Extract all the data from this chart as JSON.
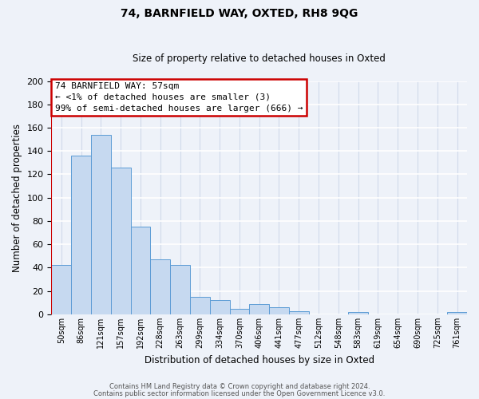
{
  "title": "74, BARNFIELD WAY, OXTED, RH8 9QG",
  "subtitle": "Size of property relative to detached houses in Oxted",
  "xlabel": "Distribution of detached houses by size in Oxted",
  "ylabel": "Number of detached properties",
  "bin_labels": [
    "50sqm",
    "86sqm",
    "121sqm",
    "157sqm",
    "192sqm",
    "228sqm",
    "263sqm",
    "299sqm",
    "334sqm",
    "370sqm",
    "406sqm",
    "441sqm",
    "477sqm",
    "512sqm",
    "548sqm",
    "583sqm",
    "619sqm",
    "654sqm",
    "690sqm",
    "725sqm",
    "761sqm"
  ],
  "bar_values": [
    42,
    136,
    154,
    126,
    75,
    47,
    42,
    15,
    12,
    5,
    9,
    6,
    3,
    0,
    0,
    2,
    0,
    0,
    0,
    0,
    2
  ],
  "bar_color": "#c6d9f0",
  "bar_edge_color": "#5b9bd5",
  "ylim": [
    0,
    200
  ],
  "yticks": [
    0,
    20,
    40,
    60,
    80,
    100,
    120,
    140,
    160,
    180,
    200
  ],
  "property_line_color": "#cc0000",
  "annotation_title": "74 BARNFIELD WAY: 57sqm",
  "annotation_line1": "← <1% of detached houses are smaller (3)",
  "annotation_line2": "99% of semi-detached houses are larger (666) →",
  "annotation_box_color": "#ffffff",
  "annotation_box_edge": "#cc0000",
  "footer1": "Contains HM Land Registry data © Crown copyright and database right 2024.",
  "footer2": "Contains public sector information licensed under the Open Government Licence v3.0.",
  "background_color": "#eef2f9",
  "grid_color": "#d8e2f0"
}
